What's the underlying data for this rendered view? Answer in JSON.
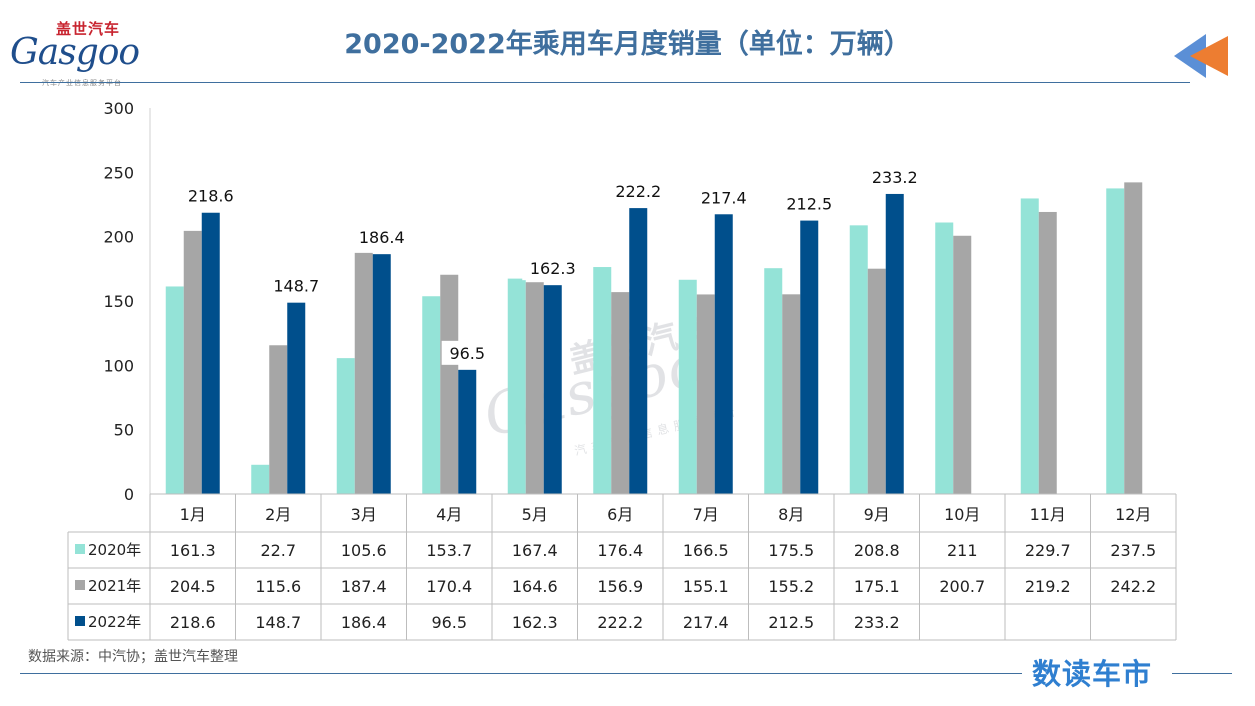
{
  "header": {
    "title": "2020-2022年乘用车月度销量（单位：万辆）",
    "logo_cn": "盖世汽车",
    "logo_en": "Gasgoo",
    "logo_sub": "汽车产业信息服务平台"
  },
  "footer": {
    "source": "数据来源：中汽协；盖世汽车整理",
    "brand": "数读车市"
  },
  "colors": {
    "series_2020": "#94e3d7",
    "series_2021": "#a6a6a6",
    "series_2022": "#004f8c",
    "title": "#3f6f9e",
    "arrow_orange": "#ed7d31",
    "arrow_blue": "#5b8fd6"
  },
  "chart_data": {
    "type": "bar",
    "title": "2020-2022年乘用车月度销量（单位：万辆）",
    "categories": [
      "1月",
      "2月",
      "3月",
      "4月",
      "5月",
      "6月",
      "7月",
      "8月",
      "9月",
      "10月",
      "11月",
      "12月"
    ],
    "ylim": [
      0,
      300
    ],
    "yticks": [
      "0",
      "50",
      "100",
      "150",
      "200",
      "250",
      "300"
    ],
    "grid": false,
    "legend": "data-table",
    "series": [
      {
        "name": "2020年",
        "values": [
          161.3,
          22.7,
          105.6,
          153.7,
          167.4,
          176.4,
          166.5,
          175.5,
          208.8,
          211,
          229.7,
          237.5
        ],
        "labels": [
          "161.3",
          "22.7",
          "105.6",
          "153.7",
          "167.4",
          "176.4",
          "166.5",
          "175.5",
          "208.8",
          "211",
          "229.7",
          "237.5"
        ]
      },
      {
        "name": "2021年",
        "values": [
          204.5,
          115.6,
          187.4,
          170.4,
          164.6,
          156.9,
          155.1,
          155.2,
          175.1,
          200.7,
          219.2,
          242.2
        ],
        "labels": [
          "204.5",
          "115.6",
          "187.4",
          "170.4",
          "164.6",
          "156.9",
          "155.1",
          "155.2",
          "175.1",
          "200.7",
          "219.2",
          "242.2"
        ]
      },
      {
        "name": "2022年",
        "values": [
          218.6,
          148.7,
          186.4,
          96.5,
          162.3,
          222.2,
          217.4,
          212.5,
          233.2,
          null,
          null,
          null
        ],
        "labels": [
          "218.6",
          "148.7",
          "186.4",
          "96.5",
          "162.3",
          "222.2",
          "217.4",
          "212.5",
          "233.2",
          "",
          "",
          ""
        ]
      }
    ]
  }
}
